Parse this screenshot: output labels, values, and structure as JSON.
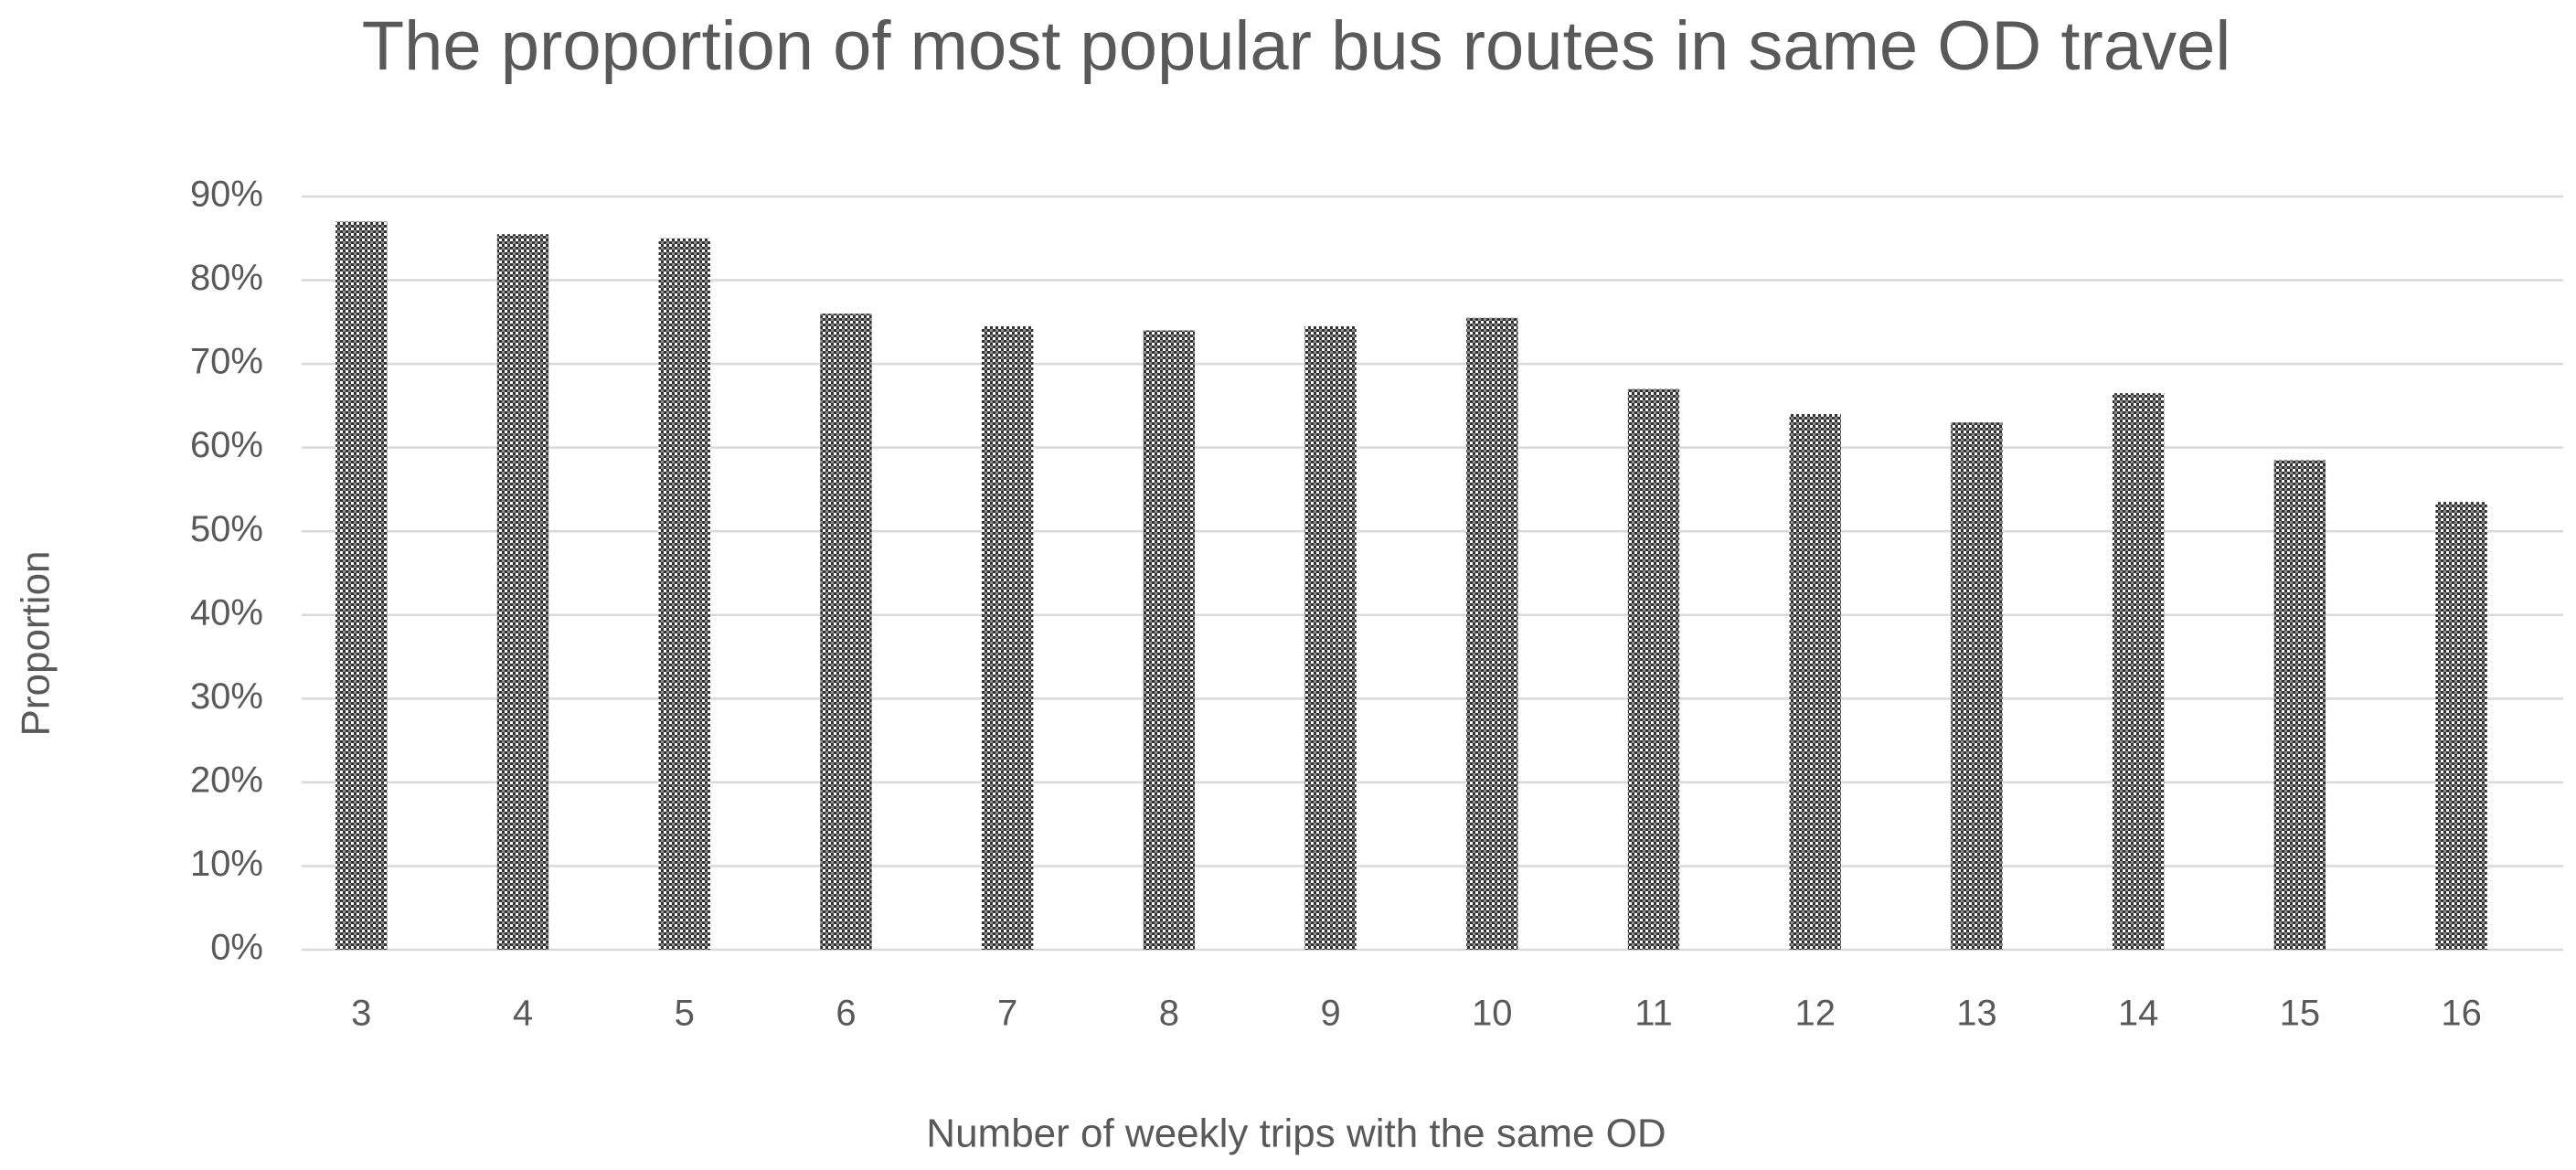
{
  "chart_data": {
    "type": "bar",
    "title": "The proportion of most popular bus routes in same OD travel",
    "x_label": "Number of weekly trips with the same OD",
    "y_label": "Proportion",
    "categories": [
      "3",
      "4",
      "5",
      "6",
      "7",
      "8",
      "9",
      "10",
      "11",
      "12",
      "13",
      "14",
      "15",
      "16"
    ],
    "values": [
      87,
      85.5,
      85,
      76,
      74.5,
      74,
      74.5,
      75.5,
      67,
      64,
      63,
      66.5,
      58.5,
      53.5
    ],
    "color": "#303030",
    "ylim": [
      0,
      90
    ],
    "yticks": [
      {
        "value": 0,
        "label": "0%"
      },
      {
        "value": 10,
        "label": "10%"
      },
      {
        "value": 20,
        "label": "20%"
      },
      {
        "value": 30,
        "label": "30%"
      },
      {
        "value": 40,
        "label": "40%"
      },
      {
        "value": 50,
        "label": "50%"
      },
      {
        "value": 60,
        "label": "60%"
      },
      {
        "value": 70,
        "label": "70%"
      },
      {
        "value": 80,
        "label": "80%"
      },
      {
        "value": 90,
        "label": "90%"
      }
    ],
    "grid": true
  }
}
